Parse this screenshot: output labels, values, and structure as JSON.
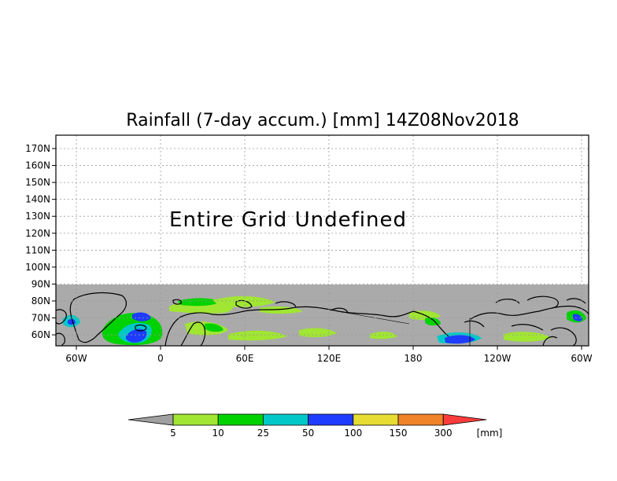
{
  "map": {
    "title": "Rainfall (7-day accum.) [mm] 14Z08Nov2018",
    "undefined_message": "Entire Grid Undefined",
    "lat_labels": [
      "170N",
      "160N",
      "150N",
      "140N",
      "130N",
      "120N",
      "110N",
      "100N",
      "90N",
      "80N",
      "70N",
      "60N"
    ],
    "lon_labels": [
      "60W",
      "0",
      "60E",
      "120E",
      "180",
      "120W",
      "60W"
    ],
    "no_data_color": "#aaaaaa",
    "coast_color": "#000000"
  },
  "colorbar": {
    "labels": [
      "5",
      "10",
      "25",
      "50",
      "100",
      "150",
      "300"
    ],
    "unit": "[mm]",
    "colors": [
      "#a0a0a0",
      "#a0e632",
      "#00d200",
      "#00c8c8",
      "#1e3cff",
      "#e6dc32",
      "#f08228",
      "#fa3c3c"
    ]
  }
}
